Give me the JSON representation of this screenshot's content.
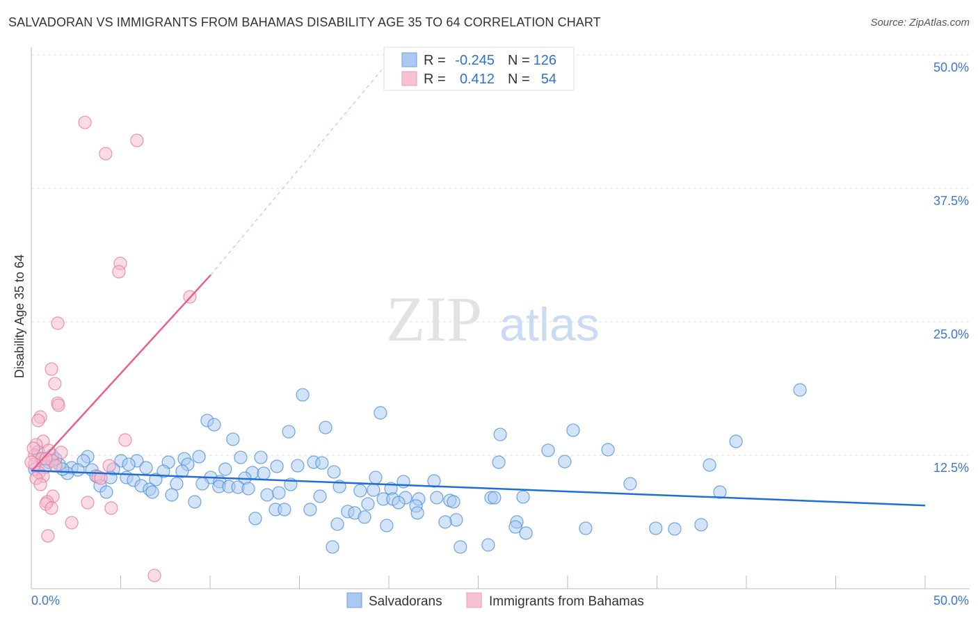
{
  "title": "SALVADORAN VS IMMIGRANTS FROM BAHAMAS DISABILITY AGE 35 TO 64 CORRELATION CHART",
  "source": "Source: ZipAtlas.com",
  "watermark": {
    "zip": "ZIP",
    "atlas": "atlas"
  },
  "colors": {
    "blue": "#4a8ee0",
    "blue_fill": "#a9c9f2",
    "blue_line": "#1f6ed8",
    "pink": "#e8799a",
    "pink_fill": "#f7b9cc",
    "pink_line": "#e8608c",
    "tick_text": "#3a78d0"
  },
  "chart_data": {
    "type": "scatter",
    "title": "SALVADORAN VS IMMIGRANTS FROM BAHAMAS DISABILITY AGE 35 TO 64 CORRELATION CHART",
    "xlabel": "",
    "ylabel": "Disability Age 35 to 64",
    "xlim": [
      0,
      50
    ],
    "ylim": [
      0,
      50
    ],
    "x_tick_labels": [
      "0.0%",
      "50.0%"
    ],
    "y_ticks": [
      {
        "v": 12.5,
        "label": "12.5%"
      },
      {
        "v": 25,
        "label": "25.0%"
      },
      {
        "v": 37.5,
        "label": "37.5%"
      },
      {
        "v": 50,
        "label": "50.0%"
      }
    ],
    "grid": true,
    "legend": {
      "placement": "top-center",
      "rows": [
        {
          "r_label": "R =",
          "r": "-0.245",
          "n_label": "N =",
          "n": "126"
        },
        {
          "r_label": "R =",
          "r": "0.412",
          "n_label": "N =",
          "n": "54"
        }
      ]
    },
    "bottom_legend": [
      "Salvadorans",
      "Immigrants from Bahamas"
    ],
    "series": [
      {
        "name": "Salvadorans",
        "trend": [
          [
            0,
            11.07
          ],
          [
            50,
            7.8
          ]
        ],
        "points": [
          [
            15.18,
            18.16
          ],
          [
            43.0,
            18.62
          ],
          [
            19.53,
            16.47
          ],
          [
            9.84,
            15.76
          ],
          [
            10.23,
            15.36
          ],
          [
            16.46,
            15.1
          ],
          [
            14.4,
            14.71
          ],
          [
            26.23,
            14.45
          ],
          [
            30.31,
            14.84
          ],
          [
            11.28,
            14.0
          ],
          [
            39.42,
            13.8
          ],
          [
            32.26,
            13.02
          ],
          [
            28.91,
            12.96
          ],
          [
            3.15,
            12.37
          ],
          [
            9.38,
            12.37
          ],
          [
            11.71,
            12.3
          ],
          [
            12.84,
            12.3
          ],
          [
            8.56,
            12.17
          ],
          [
            2.92,
            11.98
          ],
          [
            5.02,
            11.98
          ],
          [
            5.91,
            11.98
          ],
          [
            7.67,
            11.85
          ],
          [
            15.8,
            11.85
          ],
          [
            16.26,
            11.78
          ],
          [
            26.15,
            11.85
          ],
          [
            29.84,
            11.91
          ],
          [
            37.94,
            11.59
          ],
          [
            8.75,
            11.65
          ],
          [
            5.45,
            11.65
          ],
          [
            13.74,
            11.46
          ],
          [
            14.9,
            11.52
          ],
          [
            6.42,
            11.33
          ],
          [
            10.85,
            11.2
          ],
          [
            4.59,
            11.2
          ],
          [
            2.26,
            11.33
          ],
          [
            3.39,
            11.13
          ],
          [
            16.93,
            10.94
          ],
          [
            7.39,
            11.0
          ],
          [
            8.44,
            11.0
          ],
          [
            12.37,
            10.87
          ],
          [
            13.0,
            10.81
          ],
          [
            2.02,
            10.81
          ],
          [
            3.62,
            10.55
          ],
          [
            4.44,
            10.42
          ],
          [
            5.33,
            10.42
          ],
          [
            10.04,
            10.42
          ],
          [
            11.95,
            10.35
          ],
          [
            19.26,
            10.42
          ],
          [
            5.72,
            10.16
          ],
          [
            6.96,
            10.22
          ],
          [
            10.54,
            10.03
          ],
          [
            8.13,
            9.83
          ],
          [
            9.57,
            9.83
          ],
          [
            20.82,
            10.03
          ],
          [
            22.53,
            10.09
          ],
          [
            33.5,
            9.83
          ],
          [
            6.15,
            9.64
          ],
          [
            3.85,
            9.64
          ],
          [
            10.5,
            9.57
          ],
          [
            11.05,
            9.57
          ],
          [
            11.56,
            9.51
          ],
          [
            12.14,
            9.38
          ],
          [
            14.51,
            9.77
          ],
          [
            17.24,
            9.57
          ],
          [
            19.14,
            9.24
          ],
          [
            20.12,
            9.38
          ],
          [
            6.61,
            9.31
          ],
          [
            4.2,
            9.05
          ],
          [
            6.77,
            9.05
          ],
          [
            18.4,
            9.18
          ],
          [
            38.52,
            9.05
          ],
          [
            13.19,
            8.79
          ],
          [
            13.85,
            8.98
          ],
          [
            7.86,
            8.79
          ],
          [
            16.15,
            8.66
          ],
          [
            19.69,
            8.4
          ],
          [
            20.93,
            8.53
          ],
          [
            21.67,
            8.4
          ],
          [
            22.68,
            8.53
          ],
          [
            20.23,
            8.4
          ],
          [
            25.72,
            8.53
          ],
          [
            25.91,
            8.53
          ],
          [
            27.51,
            8.59
          ],
          [
            23.42,
            8.27
          ],
          [
            23.62,
            8.14
          ],
          [
            20.54,
            8.07
          ],
          [
            21.52,
            7.75
          ],
          [
            9.14,
            8.14
          ],
          [
            18.83,
            7.94
          ],
          [
            13.66,
            7.42
          ],
          [
            14.16,
            7.42
          ],
          [
            15.6,
            7.42
          ],
          [
            17.7,
            7.23
          ],
          [
            18.09,
            7.1
          ],
          [
            21.6,
            7.1
          ],
          [
            18.64,
            6.71
          ],
          [
            12.53,
            6.58
          ],
          [
            23.77,
            6.45
          ],
          [
            23.15,
            6.25
          ],
          [
            17.12,
            6.05
          ],
          [
            19.88,
            5.92
          ],
          [
            27.16,
            6.25
          ],
          [
            27.08,
            5.79
          ],
          [
            27.67,
            5.21
          ],
          [
            31.01,
            5.66
          ],
          [
            34.93,
            5.66
          ],
          [
            35.99,
            5.6
          ],
          [
            37.47,
            5.99
          ],
          [
            16.85,
            3.91
          ],
          [
            24.0,
            3.91
          ],
          [
            25.56,
            4.1
          ],
          [
            0.39,
            12.83
          ],
          [
            0.58,
            12.17
          ],
          [
            0.97,
            11.85
          ],
          [
            1.56,
            11.65
          ],
          [
            0.19,
            11.2
          ],
          [
            0.78,
            11.39
          ],
          [
            1.36,
            12.17
          ],
          [
            1.75,
            11.2
          ],
          [
            2.61,
            11.13
          ],
          [
            1.17,
            12.5
          ]
        ]
      },
      {
        "name": "Immigrants from Bahamas",
        "trend": [
          [
            0,
            11.0
          ],
          [
            10.04,
            29.4
          ]
        ],
        "trend_extension": [
          [
            10.04,
            29.4
          ],
          [
            19.6,
            48.6
          ]
        ],
        "points": [
          [
            3.0,
            43.68
          ],
          [
            4.16,
            40.75
          ],
          [
            5.91,
            41.99
          ],
          [
            4.98,
            30.47
          ],
          [
            4.9,
            29.69
          ],
          [
            8.87,
            27.34
          ],
          [
            1.48,
            24.87
          ],
          [
            1.13,
            20.57
          ],
          [
            1.32,
            19.21
          ],
          [
            1.48,
            17.38
          ],
          [
            1.52,
            17.19
          ],
          [
            0.51,
            16.08
          ],
          [
            0.39,
            15.76
          ],
          [
            5.25,
            13.93
          ],
          [
            0.66,
            13.8
          ],
          [
            0.27,
            13.48
          ],
          [
            1.67,
            12.76
          ],
          [
            0.97,
            12.96
          ],
          [
            0.19,
            12.5
          ],
          [
            0.58,
            12.17
          ],
          [
            1.17,
            11.98
          ],
          [
            4.36,
            11.52
          ],
          [
            0.19,
            11.65
          ],
          [
            0.43,
            10.87
          ],
          [
            0.66,
            10.55
          ],
          [
            0.27,
            10.35
          ],
          [
            3.74,
            10.48
          ],
          [
            3.89,
            10.35
          ],
          [
            0.51,
            9.77
          ],
          [
            1.21,
            8.66
          ],
          [
            0.89,
            8.14
          ],
          [
            0.82,
            7.94
          ],
          [
            1.13,
            7.55
          ],
          [
            3.15,
            8.07
          ],
          [
            4.47,
            7.55
          ],
          [
            2.26,
            6.18
          ],
          [
            0.93,
            4.95
          ],
          [
            6.89,
            1.24
          ],
          [
            0,
            11.85
          ],
          [
            0.82,
            12.17
          ],
          [
            1.36,
            11.52
          ],
          [
            0.12,
            13.15
          ]
        ]
      }
    ]
  }
}
